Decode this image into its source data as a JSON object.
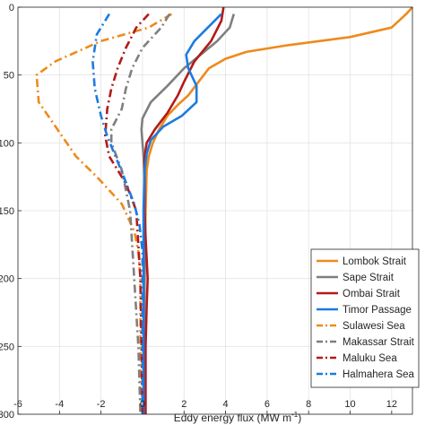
{
  "chart_data": {
    "type": "line",
    "xlabel": "Eddy energy flux (MW m",
    "xlabel_sup": "-1",
    "xlabel_close": ")",
    "xlim": [
      -6,
      13
    ],
    "ylim": [
      300,
      0
    ],
    "xticks": [
      "-6",
      "-4",
      "-2",
      "0",
      "2",
      "4",
      "6",
      "8",
      "10",
      "12"
    ],
    "yticks": [
      "0",
      "50",
      "100",
      "150",
      "200",
      "250",
      "300"
    ],
    "grid": true,
    "legend_position": "bottom-right",
    "series": [
      {
        "name": "Lombok Strait",
        "color": "#EE8A1C",
        "dash": "solid",
        "points": [
          [
            13,
            0
          ],
          [
            12.7,
            5
          ],
          [
            12,
            15
          ],
          [
            10,
            22
          ],
          [
            7,
            28
          ],
          [
            5,
            33
          ],
          [
            4,
            38
          ],
          [
            3.2,
            45
          ],
          [
            2.7,
            55
          ],
          [
            2.2,
            65
          ],
          [
            1.7,
            72
          ],
          [
            1.2,
            80
          ],
          [
            0.8,
            90
          ],
          [
            0.5,
            100
          ],
          [
            0.3,
            110
          ],
          [
            0.2,
            120
          ],
          [
            0.15,
            150
          ],
          [
            0.1,
            200
          ],
          [
            0.05,
            250
          ],
          [
            0.05,
            300
          ]
        ]
      },
      {
        "name": "Sape Strait",
        "color": "#7F7F7F",
        "dash": "solid",
        "points": [
          [
            4.4,
            5
          ],
          [
            4.2,
            15
          ],
          [
            3.6,
            25
          ],
          [
            2.8,
            35
          ],
          [
            2,
            45
          ],
          [
            1.2,
            58
          ],
          [
            0.4,
            70
          ],
          [
            0,
            82
          ],
          [
            -0.05,
            90
          ],
          [
            0,
            100
          ],
          [
            0.05,
            110
          ],
          [
            0.1,
            130
          ],
          [
            0.1,
            200
          ],
          [
            0.05,
            250
          ],
          [
            0.05,
            300
          ]
        ]
      },
      {
        "name": "Ombai Strait",
        "color": "#B41A1A",
        "dash": "solid",
        "points": [
          [
            3.9,
            0
          ],
          [
            3.8,
            10
          ],
          [
            3.3,
            25
          ],
          [
            2.5,
            40
          ],
          [
            2,
            55
          ],
          [
            1.7,
            65
          ],
          [
            1.2,
            78
          ],
          [
            0.6,
            90
          ],
          [
            0.2,
            100
          ],
          [
            0.1,
            110
          ],
          [
            0.1,
            150
          ],
          [
            0.15,
            170
          ],
          [
            0.25,
            200
          ],
          [
            0.2,
            220
          ],
          [
            0.15,
            250
          ],
          [
            0.15,
            300
          ]
        ]
      },
      {
        "name": "Timor Passage",
        "color": "#1B7BE0",
        "dash": "solid",
        "points": [
          [
            3.8,
            5
          ],
          [
            2.5,
            25
          ],
          [
            2.1,
            35
          ],
          [
            2.2,
            45
          ],
          [
            2.6,
            58
          ],
          [
            2.6,
            70
          ],
          [
            1.9,
            80
          ],
          [
            1,
            88
          ],
          [
            0.4,
            98
          ],
          [
            0.2,
            108
          ],
          [
            0.1,
            120
          ],
          [
            0.05,
            150
          ],
          [
            0.05,
            200
          ],
          [
            0.05,
            250
          ],
          [
            0.05,
            300
          ]
        ]
      },
      {
        "name": "Sulawesi Sea",
        "color": "#EE8A1C",
        "dash": "dashdot",
        "points": [
          [
            1.4,
            5
          ],
          [
            0.3,
            15
          ],
          [
            -2,
            25
          ],
          [
            -4.2,
            40
          ],
          [
            -5.1,
            50
          ],
          [
            -5,
            70
          ],
          [
            -4.1,
            90
          ],
          [
            -3.2,
            110
          ],
          [
            -2.2,
            125
          ],
          [
            -1,
            145
          ],
          [
            -0.4,
            165
          ],
          [
            -0.2,
            180
          ],
          [
            -0.1,
            200
          ],
          [
            -0.1,
            250
          ],
          [
            -0.1,
            300
          ]
        ]
      },
      {
        "name": "Makassar Strait",
        "color": "#7F7F7F",
        "dash": "dashdot",
        "points": [
          [
            1.3,
            5
          ],
          [
            0.9,
            15
          ],
          [
            0,
            30
          ],
          [
            -0.5,
            45
          ],
          [
            -0.8,
            60
          ],
          [
            -1,
            75
          ],
          [
            -1.5,
            90
          ],
          [
            -1.5,
            100
          ],
          [
            -1,
            120
          ],
          [
            -0.6,
            150
          ],
          [
            -0.4,
            200
          ],
          [
            -0.2,
            250
          ],
          [
            -0.1,
            300
          ]
        ]
      },
      {
        "name": "Maluku Sea",
        "color": "#B41A1A",
        "dash": "dashdot",
        "points": [
          [
            0.3,
            5
          ],
          [
            -0.3,
            15
          ],
          [
            -0.8,
            30
          ],
          [
            -1.2,
            45
          ],
          [
            -1.5,
            60
          ],
          [
            -1.7,
            75
          ],
          [
            -1.8,
            95
          ],
          [
            -1.6,
            110
          ],
          [
            -0.8,
            130
          ],
          [
            -0.3,
            150
          ],
          [
            -0.1,
            200
          ],
          [
            -0.05,
            250
          ],
          [
            0,
            300
          ]
        ]
      },
      {
        "name": "Halmahera Sea",
        "color": "#1B7BE0",
        "dash": "dashdot",
        "points": [
          [
            -1.6,
            5
          ],
          [
            -2.2,
            20
          ],
          [
            -2.4,
            40
          ],
          [
            -2.3,
            60
          ],
          [
            -2,
            80
          ],
          [
            -1.7,
            95
          ],
          [
            -1.3,
            110
          ],
          [
            -0.9,
            125
          ],
          [
            -0.4,
            145
          ],
          [
            -0.15,
            160
          ],
          [
            0,
            180
          ],
          [
            0,
            200
          ],
          [
            0,
            250
          ],
          [
            0,
            300
          ]
        ]
      }
    ]
  }
}
